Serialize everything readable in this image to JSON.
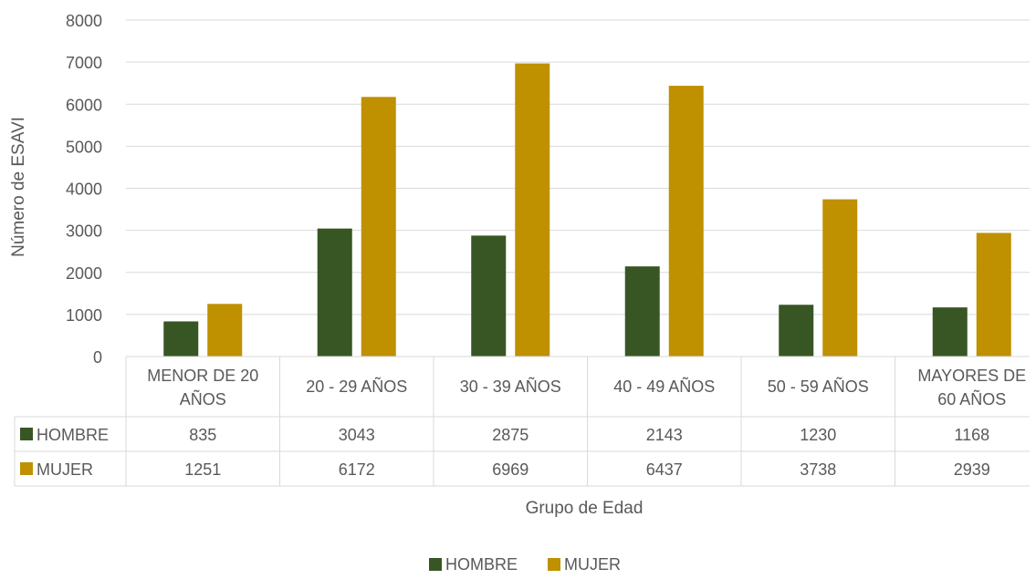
{
  "chart_data": {
    "type": "bar",
    "title": "",
    "xlabel": "Grupo de Edad",
    "ylabel": "Número de ESAVI",
    "ylim": [
      0,
      8000
    ],
    "yticks": [
      0,
      1000,
      2000,
      3000,
      4000,
      5000,
      6000,
      7000,
      8000
    ],
    "grid": true,
    "legend_position": "bottom",
    "categories": [
      [
        "MENOR DE 20",
        "AÑOS"
      ],
      [
        "20 - 29 AÑOS"
      ],
      [
        "30 - 39 AÑOS"
      ],
      [
        "40 - 49 AÑOS"
      ],
      [
        "50 - 59 AÑOS"
      ],
      [
        "MAYORES DE",
        "60 AÑOS"
      ]
    ],
    "series": [
      {
        "name": "HOMBRE",
        "color": "#375623",
        "values": [
          835,
          3043,
          2875,
          2143,
          1230,
          1168
        ]
      },
      {
        "name": "MUJER",
        "color": "#BF9000",
        "values": [
          1251,
          6172,
          6969,
          6437,
          3738,
          2939
        ]
      }
    ]
  }
}
